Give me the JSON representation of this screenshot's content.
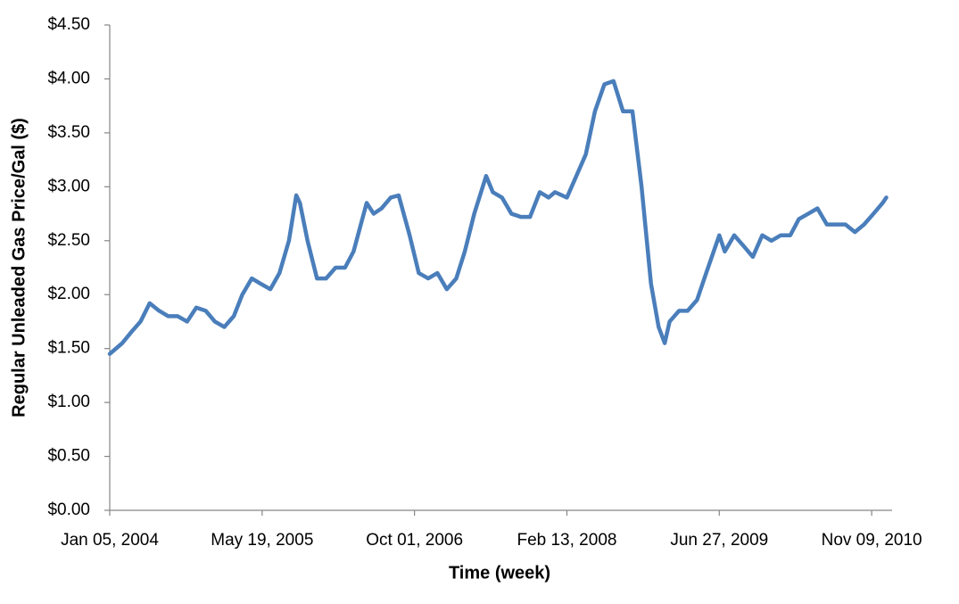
{
  "chart_data": {
    "type": "line",
    "x_label": "Time (week)",
    "y_label": "Regular Unleaded Gas Price/Gal ($)",
    "x": [
      "2004-01-05",
      "2004-02-15",
      "2004-03-15",
      "2004-04-15",
      "2004-05-15",
      "2004-06-15",
      "2004-07-15",
      "2004-08-15",
      "2004-09-15",
      "2004-10-15",
      "2004-11-15",
      "2004-12-15",
      "2005-01-15",
      "2005-02-15",
      "2005-03-15",
      "2005-04-15",
      "2005-05-15",
      "2005-06-15",
      "2005-07-15",
      "2005-08-15",
      "2005-09-08",
      "2005-09-20",
      "2005-10-15",
      "2005-11-15",
      "2005-12-15",
      "2006-01-15",
      "2006-02-15",
      "2006-03-15",
      "2006-04-27",
      "2006-05-20",
      "2006-06-15",
      "2006-07-15",
      "2006-08-10",
      "2006-09-15",
      "2006-10-15",
      "2006-11-15",
      "2006-12-15",
      "2007-01-15",
      "2007-02-15",
      "2007-03-15",
      "2007-04-15",
      "2007-05-24",
      "2007-06-15",
      "2007-07-15",
      "2007-08-15",
      "2007-09-15",
      "2007-10-15",
      "2007-11-16",
      "2007-12-15",
      "2008-01-05",
      "2008-02-13",
      "2008-03-15",
      "2008-04-15",
      "2008-05-15",
      "2008-06-15",
      "2008-07-15",
      "2008-08-15",
      "2008-09-15",
      "2008-10-15",
      "2008-11-15",
      "2008-12-10",
      "2008-12-30",
      "2009-01-15",
      "2009-02-15",
      "2009-03-15",
      "2009-04-15",
      "2009-05-15",
      "2009-06-27",
      "2009-07-15",
      "2009-08-15",
      "2009-09-15",
      "2009-10-15",
      "2009-11-15",
      "2009-12-15",
      "2010-01-15",
      "2010-02-15",
      "2010-03-15",
      "2010-04-15",
      "2010-05-15",
      "2010-06-15",
      "2010-07-15",
      "2010-08-15",
      "2010-09-15",
      "2010-10-15",
      "2010-11-15",
      "2010-12-15",
      "2010-12-27"
    ],
    "series": [
      {
        "name": "Regular Unleaded Gas Price",
        "color": "#4a7ebb",
        "values": [
          1.45,
          1.55,
          1.65,
          1.75,
          1.92,
          1.85,
          1.8,
          1.8,
          1.75,
          1.88,
          1.85,
          1.75,
          1.7,
          1.8,
          2.0,
          2.15,
          2.1,
          2.05,
          2.2,
          2.5,
          2.92,
          2.85,
          2.5,
          2.15,
          2.15,
          2.25,
          2.25,
          2.4,
          2.85,
          2.75,
          2.8,
          2.9,
          2.92,
          2.55,
          2.2,
          2.15,
          2.2,
          2.05,
          2.15,
          2.4,
          2.75,
          3.1,
          2.95,
          2.9,
          2.75,
          2.72,
          2.72,
          2.95,
          2.9,
          2.95,
          2.9,
          3.1,
          3.3,
          3.7,
          3.95,
          3.98,
          3.7,
          3.7,
          3.0,
          2.1,
          1.7,
          1.55,
          1.75,
          1.85,
          1.85,
          1.95,
          2.2,
          2.55,
          2.4,
          2.55,
          2.45,
          2.35,
          2.55,
          2.5,
          2.55,
          2.55,
          2.7,
          2.75,
          2.8,
          2.65,
          2.65,
          2.65,
          2.58,
          2.65,
          2.75,
          2.85,
          2.9
        ]
      }
    ],
    "xlim": [
      "2004-01-05",
      "2011-01-15"
    ],
    "xticks": [
      {
        "value": "2004-01-05",
        "label": "Jan 05, 2004"
      },
      {
        "value": "2005-05-19",
        "label": "May 19, 2005"
      },
      {
        "value": "2006-10-01",
        "label": "Oct 01, 2006"
      },
      {
        "value": "2008-02-13",
        "label": "Feb 13, 2008"
      },
      {
        "value": "2009-06-27",
        "label": "Jun 27, 2009"
      },
      {
        "value": "2010-11-09",
        "label": "Nov 09, 2010"
      }
    ],
    "ylim": [
      0,
      4.5
    ],
    "yticks": [
      {
        "value": 0,
        "label": "$0.00"
      },
      {
        "value": 0.5,
        "label": "$0.50"
      },
      {
        "value": 1,
        "label": "$1.00"
      },
      {
        "value": 1.5,
        "label": "$1.50"
      },
      {
        "value": 2,
        "label": "$2.00"
      },
      {
        "value": 2.5,
        "label": "$2.50"
      },
      {
        "value": 3,
        "label": "$3.00"
      },
      {
        "value": 3.5,
        "label": "$3.50"
      },
      {
        "value": 4,
        "label": "$4.00"
      },
      {
        "value": 4.5,
        "label": "$4.50"
      }
    ],
    "grid": false
  }
}
